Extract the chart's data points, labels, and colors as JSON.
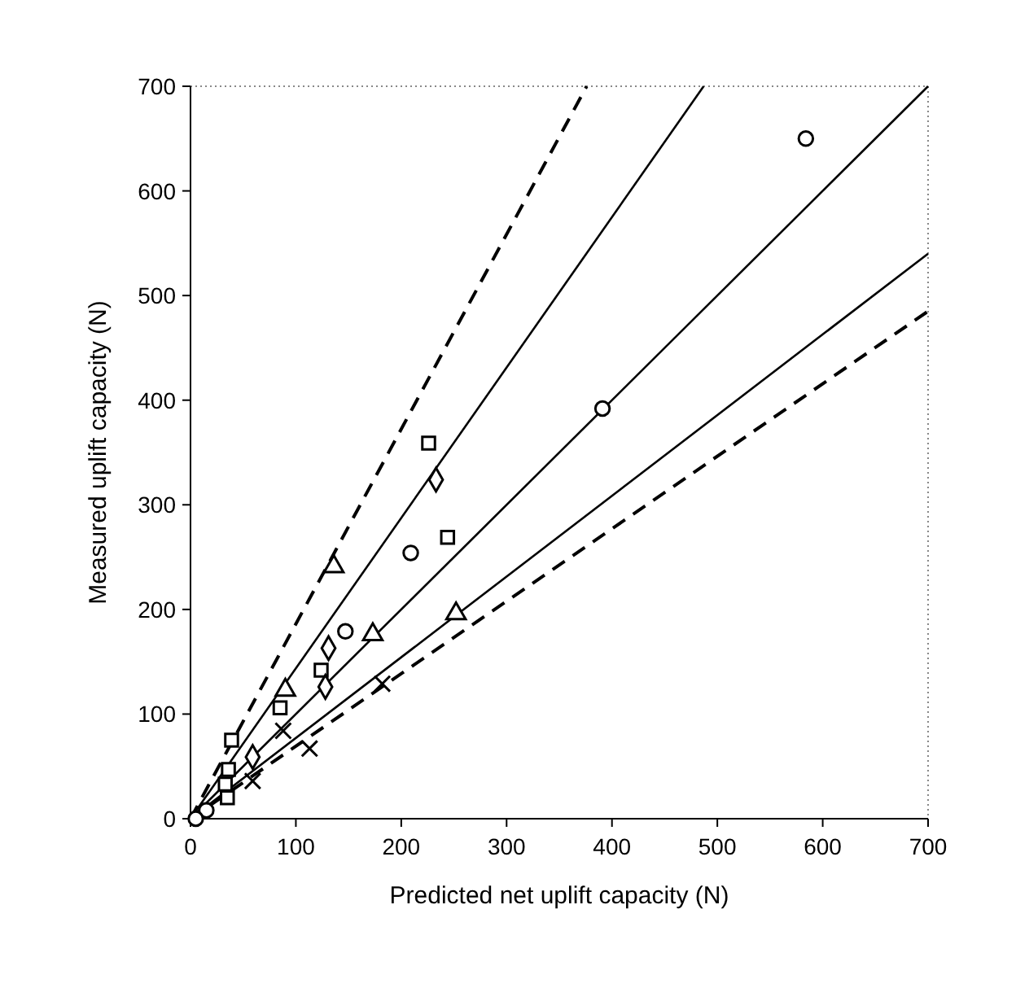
{
  "chart_data": {
    "type": "scatter",
    "xlabel": "Predicted net uplift capacity (N)",
    "ylabel": "Measured uplift capacity (N)",
    "xlim": [
      0,
      700
    ],
    "ylim": [
      0,
      700
    ],
    "xticks": [
      0,
      100,
      200,
      300,
      400,
      500,
      600,
      700
    ],
    "yticks": [
      0,
      100,
      200,
      300,
      400,
      500,
      600,
      700
    ],
    "series": [
      {
        "type": "line",
        "line_style": "dashed",
        "color": "#000000",
        "x": [
          0,
          376
        ],
        "values": [
          0,
          700
        ]
      },
      {
        "type": "line",
        "line_style": "solid",
        "color": "#000000",
        "x": [
          0,
          487
        ],
        "values": [
          0,
          700
        ]
      },
      {
        "type": "line",
        "line_style": "solid",
        "color": "#000000",
        "x": [
          0,
          700
        ],
        "values": [
          0,
          700
        ]
      },
      {
        "type": "line",
        "line_style": "solid",
        "color": "#000000",
        "x": [
          0,
          700
        ],
        "values": [
          0,
          540
        ]
      },
      {
        "type": "line",
        "line_style": "dashed",
        "color": "#000000",
        "x": [
          0,
          700
        ],
        "values": [
          0,
          485
        ]
      },
      {
        "marker": "circle",
        "color": "#000000",
        "x": [
          584,
          391,
          209,
          147,
          15,
          5
        ],
        "values": [
          650,
          392,
          254,
          179,
          8,
          0
        ]
      },
      {
        "marker": "square",
        "color": "#000000",
        "x": [
          226,
          244,
          124,
          85,
          36,
          39,
          35,
          33
        ],
        "values": [
          359,
          269,
          142,
          106,
          47,
          75,
          20,
          33
        ]
      },
      {
        "marker": "triangle",
        "color": "#000000",
        "x": [
          136,
          173,
          252,
          90
        ],
        "values": [
          241,
          176,
          196,
          123
        ]
      },
      {
        "marker": "diamond",
        "color": "#000000",
        "x": [
          233,
          128,
          131,
          59
        ],
        "values": [
          324,
          126,
          163,
          59
        ]
      },
      {
        "marker": "cross",
        "color": "#000000",
        "x": [
          182,
          113,
          88,
          59
        ],
        "values": [
          129,
          67,
          84,
          36
        ]
      }
    ]
  }
}
